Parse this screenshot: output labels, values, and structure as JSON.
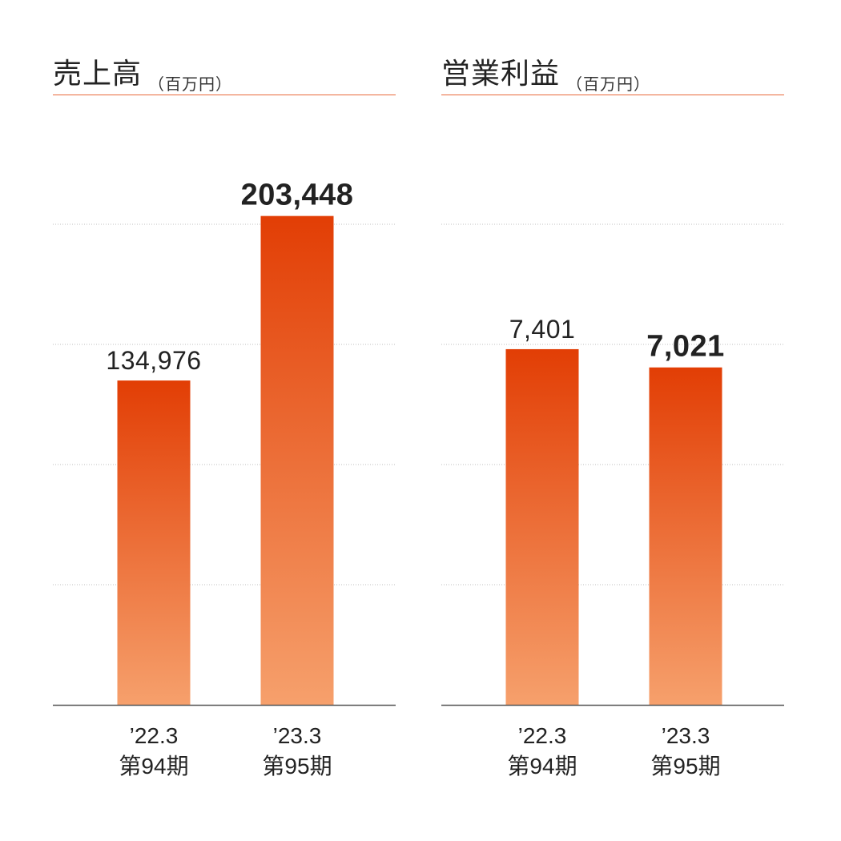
{
  "colors": {
    "bar_top": "#e23e05",
    "bar_bottom": "#f6a06c",
    "title_rule": "#e8683a",
    "grid": "#bfbfbf",
    "axis": "#555555"
  },
  "chart_data": [
    {
      "type": "bar",
      "title": "売上高",
      "unit": "（百万円）",
      "categories": [
        {
          "period": "’22.3",
          "term": "第94期"
        },
        {
          "period": "’23.3",
          "term": "第95期"
        }
      ],
      "values": [
        134976,
        203448
      ],
      "value_labels": [
        "134,976",
        "203,448"
      ],
      "highlight_index": 1,
      "ylim": [
        0,
        250000
      ],
      "grid": true,
      "grid_step": 50000
    },
    {
      "type": "bar",
      "title": "営業利益",
      "unit": "（百万円）",
      "categories": [
        {
          "period": "’22.3",
          "term": "第94期"
        },
        {
          "period": "’23.3",
          "term": "第95期"
        }
      ],
      "values": [
        7401,
        7021
      ],
      "value_labels": [
        "7,401",
        "7,021"
      ],
      "highlight_index": 1,
      "ylim": [
        0,
        12500
      ],
      "grid": true,
      "grid_step": 2500
    }
  ]
}
